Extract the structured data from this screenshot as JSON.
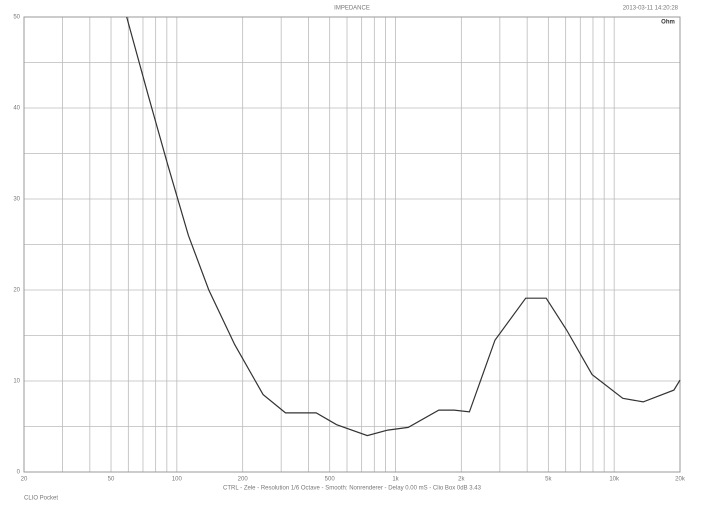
{
  "chart_data": {
    "type": "line",
    "title": "IMPEDANCE",
    "timestamp": "2013-03-11 14:20:28",
    "corner_label": "Ohm",
    "caption": "CTRL - Zele - Resolution 1/6 Octave - Smooth: Nonrenderer - Delay 0.00 mS - Clio Box 0dB 3.43",
    "footer": "CLIO Pocket",
    "log_x": true,
    "grid": true,
    "xlim": [
      20,
      20000
    ],
    "ylim": [
      0,
      50
    ],
    "xticks": [
      20,
      50,
      100,
      200,
      500,
      {
        "value": 1000,
        "label": "1k"
      },
      {
        "value": 2000,
        "label": "2k"
      },
      {
        "value": 5000,
        "label": "5k"
      },
      {
        "value": 10000,
        "label": "10k"
      },
      {
        "value": 20000,
        "label": "20k"
      }
    ],
    "xminor": [
      30,
      40,
      60,
      70,
      80,
      90,
      300,
      400,
      600,
      700,
      800,
      900,
      3000,
      4000,
      6000,
      7000,
      8000,
      9000
    ],
    "yticks": [
      0,
      10,
      20,
      30,
      40,
      50
    ],
    "yminor": [
      5,
      15,
      25,
      35,
      45
    ],
    "series": [
      {
        "name": "Impedance",
        "color": "#333333",
        "x": [
          59,
          74,
          91,
          113,
          140,
          184,
          248,
          314,
          434,
          538,
          743,
          922,
          1143,
          1578,
          1854,
          2178,
          2852,
          3937,
          4887,
          6058,
          7926,
          10947,
          13582,
          18752,
          20000
        ],
        "values": [
          50,
          41.4,
          33.7,
          26.0,
          20.0,
          14.0,
          8.5,
          6.5,
          6.5,
          5.2,
          4.0,
          4.6,
          4.9,
          6.8,
          6.8,
          6.6,
          14.5,
          19.1,
          19.1,
          15.6,
          10.7,
          8.1,
          7.7,
          9.0,
          10.1
        ]
      }
    ]
  }
}
